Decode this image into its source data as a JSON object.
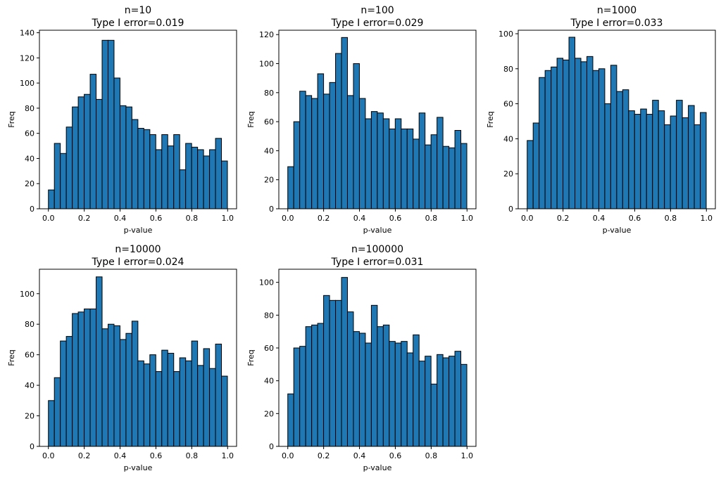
{
  "chart_data": [
    {
      "type": "bar",
      "title": "n=10",
      "subtitle": "Type I error=0.019",
      "xlabel": "p-value",
      "ylabel": "Freq",
      "xlim": [
        -0.05,
        1.05
      ],
      "ylim": [
        0,
        142
      ],
      "xticks": [
        "0.0",
        "0.2",
        "0.4",
        "0.6",
        "0.8",
        "1.0"
      ],
      "yticks": [
        "0",
        "20",
        "40",
        "60",
        "80",
        "100",
        "120",
        "140"
      ],
      "bin_edges_start": 0.0,
      "bin_width": 0.0333,
      "values": [
        15,
        52,
        44,
        65,
        81,
        89,
        91,
        107,
        87,
        134,
        134,
        104,
        82,
        81,
        71,
        64,
        63,
        59,
        47,
        59,
        50,
        59,
        31,
        52,
        49,
        47,
        42,
        47,
        56,
        38
      ],
      "bar_color": "#1f77b4",
      "edge_color": "#000000",
      "grid": false
    },
    {
      "type": "bar",
      "title": "n=100",
      "subtitle": "Type I error=0.029",
      "xlabel": "p-value",
      "ylabel": "Freq",
      "xlim": [
        -0.05,
        1.05
      ],
      "ylim": [
        0,
        123
      ],
      "xticks": [
        "0.0",
        "0.2",
        "0.4",
        "0.6",
        "0.8",
        "1.0"
      ],
      "yticks": [
        "0",
        "20",
        "40",
        "60",
        "80",
        "100",
        "120"
      ],
      "bin_edges_start": 0.0,
      "bin_width": 0.0333,
      "values": [
        29,
        60,
        81,
        78,
        76,
        93,
        79,
        87,
        107,
        118,
        78,
        100,
        76,
        62,
        67,
        66,
        62,
        55,
        62,
        55,
        55,
        48,
        66,
        44,
        51,
        63,
        43,
        42,
        54,
        45
      ],
      "bar_color": "#1f77b4",
      "edge_color": "#000000",
      "grid": false
    },
    {
      "type": "bar",
      "title": "n=1000",
      "subtitle": "Type I error=0.033",
      "xlabel": "p-value",
      "ylabel": "Freq",
      "xlim": [
        -0.05,
        1.05
      ],
      "ylim": [
        0,
        102
      ],
      "xticks": [
        "0.0",
        "0.2",
        "0.4",
        "0.6",
        "0.8",
        "1.0"
      ],
      "yticks": [
        "0",
        "20",
        "40",
        "60",
        "80",
        "100"
      ],
      "bin_edges_start": 0.0,
      "bin_width": 0.0333,
      "values": [
        39,
        49,
        75,
        79,
        81,
        86,
        85,
        98,
        86,
        84,
        87,
        79,
        80,
        60,
        82,
        67,
        68,
        56,
        54,
        57,
        54,
        62,
        56,
        48,
        53,
        62,
        52,
        59,
        48,
        55
      ],
      "bar_color": "#1f77b4",
      "edge_color": "#000000",
      "grid": false
    },
    {
      "type": "bar",
      "title": "n=10000",
      "subtitle": "Type I error=0.024",
      "xlabel": "p-value",
      "ylabel": "Freq",
      "xlim": [
        -0.05,
        1.05
      ],
      "ylim": [
        0,
        116
      ],
      "xticks": [
        "0.0",
        "0.2",
        "0.4",
        "0.6",
        "0.8",
        "1.0"
      ],
      "yticks": [
        "0",
        "20",
        "40",
        "60",
        "80",
        "100"
      ],
      "bin_edges_start": 0.0,
      "bin_width": 0.0333,
      "values": [
        30,
        45,
        69,
        72,
        87,
        88,
        90,
        90,
        111,
        77,
        80,
        79,
        70,
        74,
        82,
        56,
        54,
        60,
        49,
        63,
        61,
        49,
        58,
        56,
        69,
        53,
        64,
        51,
        67,
        46
      ],
      "bar_color": "#1f77b4",
      "edge_color": "#000000",
      "grid": false
    },
    {
      "type": "bar",
      "title": "n=100000",
      "subtitle": "Type I error=0.031",
      "xlabel": "p-value",
      "ylabel": "Freq",
      "xlim": [
        -0.05,
        1.05
      ],
      "ylim": [
        0,
        108
      ],
      "xticks": [
        "0.0",
        "0.2",
        "0.4",
        "0.6",
        "0.8",
        "1.0"
      ],
      "yticks": [
        "0",
        "20",
        "40",
        "60",
        "80",
        "100"
      ],
      "bin_edges_start": 0.0,
      "bin_width": 0.0333,
      "values": [
        32,
        60,
        61,
        73,
        74,
        75,
        92,
        89,
        89,
        103,
        82,
        70,
        69,
        63,
        86,
        73,
        74,
        64,
        63,
        64,
        57,
        68,
        52,
        55,
        38,
        56,
        54,
        55,
        58,
        50
      ],
      "bar_color": "#1f77b4",
      "edge_color": "#000000",
      "grid": false
    }
  ]
}
